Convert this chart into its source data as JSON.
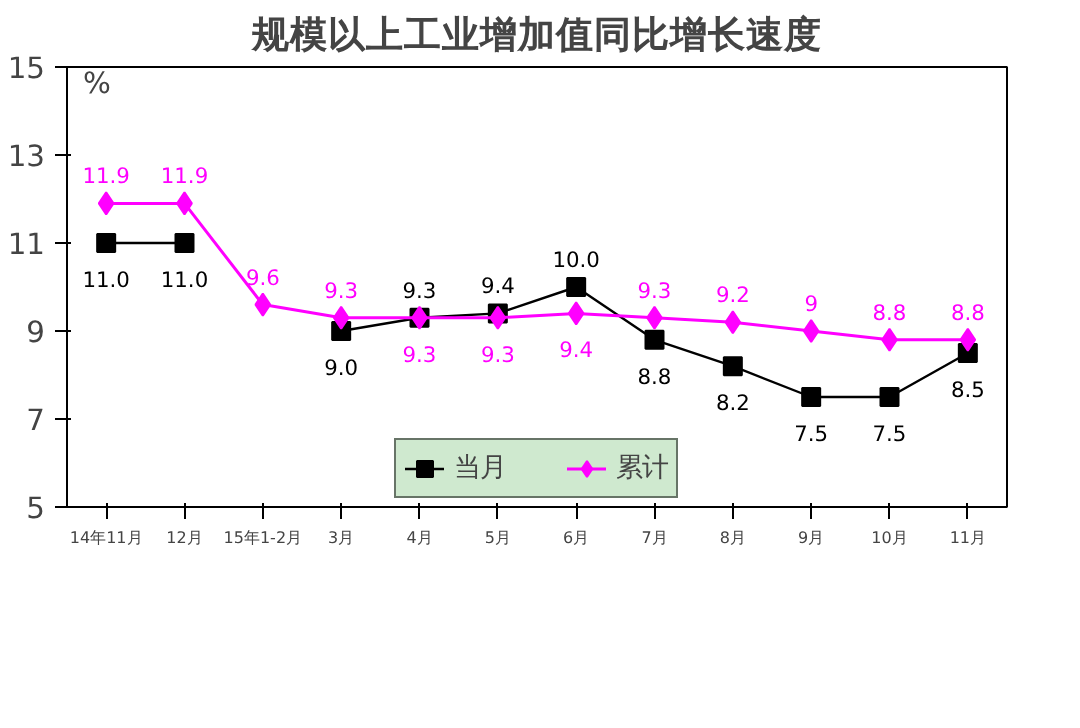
{
  "chart_data": {
    "type": "line",
    "title": "规模以上工业增加值同比增长速度",
    "ylabel": "%",
    "categories": [
      "14年11月",
      "12月",
      "15年1-2月",
      "3月",
      "4月",
      "5月",
      "6月",
      "7月",
      "8月",
      "9月",
      "10月",
      "11月"
    ],
    "series": [
      {
        "name": "当月",
        "color": "#000000",
        "marker": "square",
        "values": [
          11.0,
          11.0,
          null,
          9.0,
          9.3,
          9.4,
          10.0,
          8.8,
          8.2,
          7.5,
          7.5,
          8.5
        ],
        "value_labels": [
          "11.0",
          "11.0",
          null,
          "9.0",
          "9.3",
          "9.4",
          "10.0",
          "8.8",
          "8.2",
          "7.5",
          "7.5",
          "8.5"
        ]
      },
      {
        "name": "累计",
        "color": "#ff00ff",
        "marker": "diamond",
        "values": [
          11.9,
          11.9,
          9.6,
          9.3,
          9.3,
          9.3,
          9.4,
          9.3,
          9.2,
          9,
          8.8,
          8.8
        ],
        "value_labels": [
          "11.9",
          "11.9",
          "9.6",
          "9.3",
          "9.3",
          "9.3",
          "9.4",
          "9.3",
          "9.2",
          "9",
          "8.8",
          "8.8"
        ]
      }
    ],
    "ylim": [
      5,
      15
    ],
    "yticks": [
      5,
      7,
      9,
      11,
      13,
      15
    ],
    "grid": false,
    "legend": "bottom",
    "line_style": "solid"
  }
}
